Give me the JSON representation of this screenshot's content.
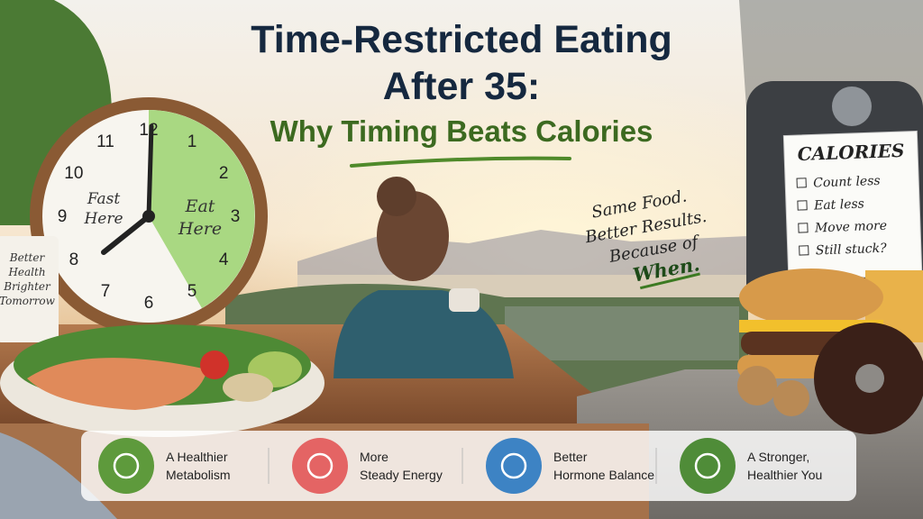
{
  "header": {
    "title_lines": [
      "Time-Restricted Eating",
      "After 35:"
    ],
    "subtitle": "Why Timing Beats Calories"
  },
  "clock": {
    "numbers": [
      12,
      1,
      2,
      3,
      4,
      5,
      6,
      7,
      8,
      9,
      10,
      11
    ],
    "fast_label": [
      "Fast",
      "Here"
    ],
    "eat_label": [
      "Eat",
      "Here"
    ]
  },
  "mug": {
    "lines": [
      "Better",
      "Health",
      "Brighter",
      "Tomorrow"
    ]
  },
  "note": {
    "lines": [
      "Same Food.",
      "Better Results.",
      "Because of"
    ],
    "emphasis": "When."
  },
  "calories_card": {
    "title": "CALORIES",
    "items": [
      "Count less",
      "Eat less",
      "Move more",
      "Still stuck?"
    ]
  },
  "benefits": [
    {
      "lines": [
        "A Healthier",
        "Metabolism"
      ]
    },
    {
      "lines": [
        "More",
        "Steady Energy"
      ]
    },
    {
      "lines": [
        "Better",
        "Hormone Balance"
      ]
    },
    {
      "lines": [
        "A Stronger,",
        "Healthier You"
      ]
    }
  ]
}
